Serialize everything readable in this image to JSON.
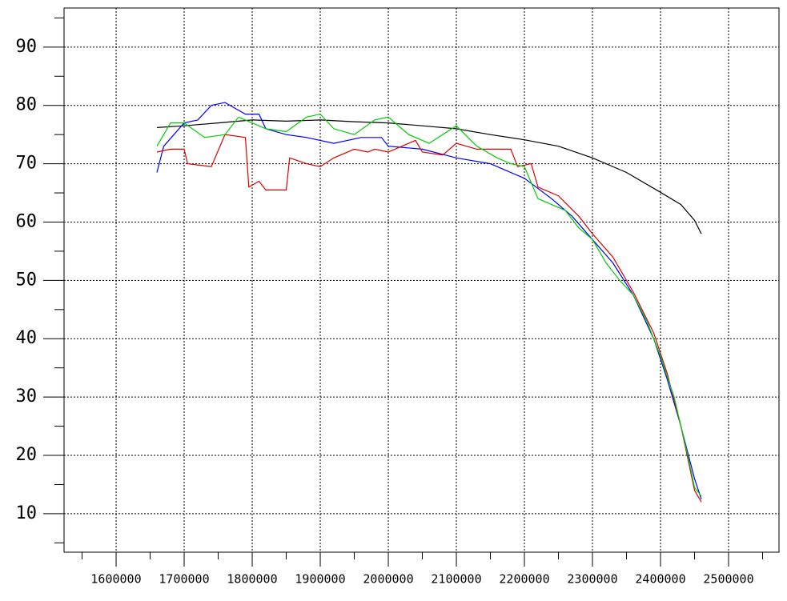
{
  "chart_data": {
    "type": "line",
    "xlim": [
      1523500,
      2574100
    ],
    "ylim": [
      3.4,
      96.7
    ],
    "xticks": [
      1600000,
      1700000,
      1800000,
      1900000,
      2000000,
      2100000,
      2200000,
      2300000,
      2400000,
      2500000
    ],
    "xminorticks": [
      1550000,
      1650000,
      1750000,
      1850000,
      1950000,
      2050000,
      2150000,
      2250000,
      2350000,
      2450000,
      2550000
    ],
    "yticks": [
      10,
      20,
      30,
      40,
      50,
      60,
      70,
      80,
      90
    ],
    "yminorticks": [
      5,
      15,
      25,
      35,
      45,
      55,
      65,
      75,
      85,
      95
    ],
    "grid": true,
    "series": [
      {
        "color": "#000000",
        "x": [
          1660000,
          1700000,
          1750000,
          1800000,
          1850000,
          1900000,
          1950000,
          2000000,
          2050000,
          2100000,
          2150000,
          2200000,
          2250000,
          2300000,
          2350000,
          2400000,
          2430000,
          2450000,
          2460000
        ],
        "values": [
          76.2,
          76.5,
          77,
          77.5,
          77.3,
          77.5,
          77.2,
          77,
          76.5,
          76,
          75,
          74.1,
          73,
          71,
          68.5,
          65.1,
          63,
          60.3,
          58
        ]
      },
      {
        "color": "#0000ff",
        "x": [
          1660000,
          1670000,
          1700000,
          1720000,
          1740000,
          1760000,
          1790000,
          1810000,
          1820000,
          1850000,
          1880000,
          1920000,
          1960000,
          1990000,
          2000000,
          2050000,
          2100000,
          2150000,
          2200000,
          2240000,
          2270000,
          2300000,
          2330000,
          2360000,
          2390000,
          2410000,
          2430000,
          2450000,
          2460000
        ],
        "values": [
          68.5,
          73,
          77,
          77.5,
          80,
          80.5,
          78.5,
          78.5,
          76,
          75,
          74.5,
          73.5,
          74.5,
          74.5,
          73,
          72.5,
          71,
          70,
          67.5,
          64,
          61,
          57,
          53,
          47.5,
          40,
          33,
          25,
          16,
          12.5
        ]
      },
      {
        "color": "#dd0000",
        "x": [
          1660000,
          1680000,
          1700000,
          1705000,
          1740000,
          1760000,
          1790000,
          1795000,
          1810000,
          1820000,
          1850000,
          1855000,
          1880000,
          1900000,
          1920000,
          1950000,
          1970000,
          1980000,
          2000000,
          2040000,
          2050000,
          2080000,
          2100000,
          2130000,
          2160000,
          2180000,
          2190000,
          2210000,
          2220000,
          2250000,
          2280000,
          2300000,
          2330000,
          2360000,
          2390000,
          2410000,
          2430000,
          2450000,
          2460000
        ],
        "values": [
          72,
          72.5,
          72.5,
          70,
          69.5,
          75,
          74.5,
          66,
          67,
          65.5,
          65.5,
          71,
          70,
          69.5,
          71,
          72.5,
          72,
          72.5,
          72,
          74,
          72,
          71.5,
          73.5,
          72.5,
          72.5,
          72.5,
          69.5,
          70,
          66,
          64.5,
          61,
          58,
          54,
          48,
          41,
          34,
          25,
          14,
          12
        ]
      },
      {
        "color": "#00cc00",
        "x": [
          1660000,
          1680000,
          1700000,
          1730000,
          1760000,
          1780000,
          1820000,
          1850000,
          1880000,
          1900000,
          1920000,
          1950000,
          1980000,
          2000000,
          2030000,
          2060000,
          2100000,
          2130000,
          2160000,
          2180000,
          2200000,
          2220000,
          2240000,
          2260000,
          2280000,
          2300000,
          2320000,
          2340000,
          2360000,
          2380000,
          2400000,
          2420000,
          2440000,
          2450000,
          2460000
        ],
        "values": [
          73,
          77,
          77,
          74.5,
          75,
          78,
          76,
          75.5,
          78,
          78.5,
          76,
          75,
          77.5,
          78,
          75,
          73.5,
          76.5,
          73,
          71,
          70,
          69.5,
          64,
          63,
          62,
          59,
          57,
          53,
          50,
          47.5,
          43,
          37,
          30,
          20,
          14.5,
          13
        ]
      }
    ]
  }
}
